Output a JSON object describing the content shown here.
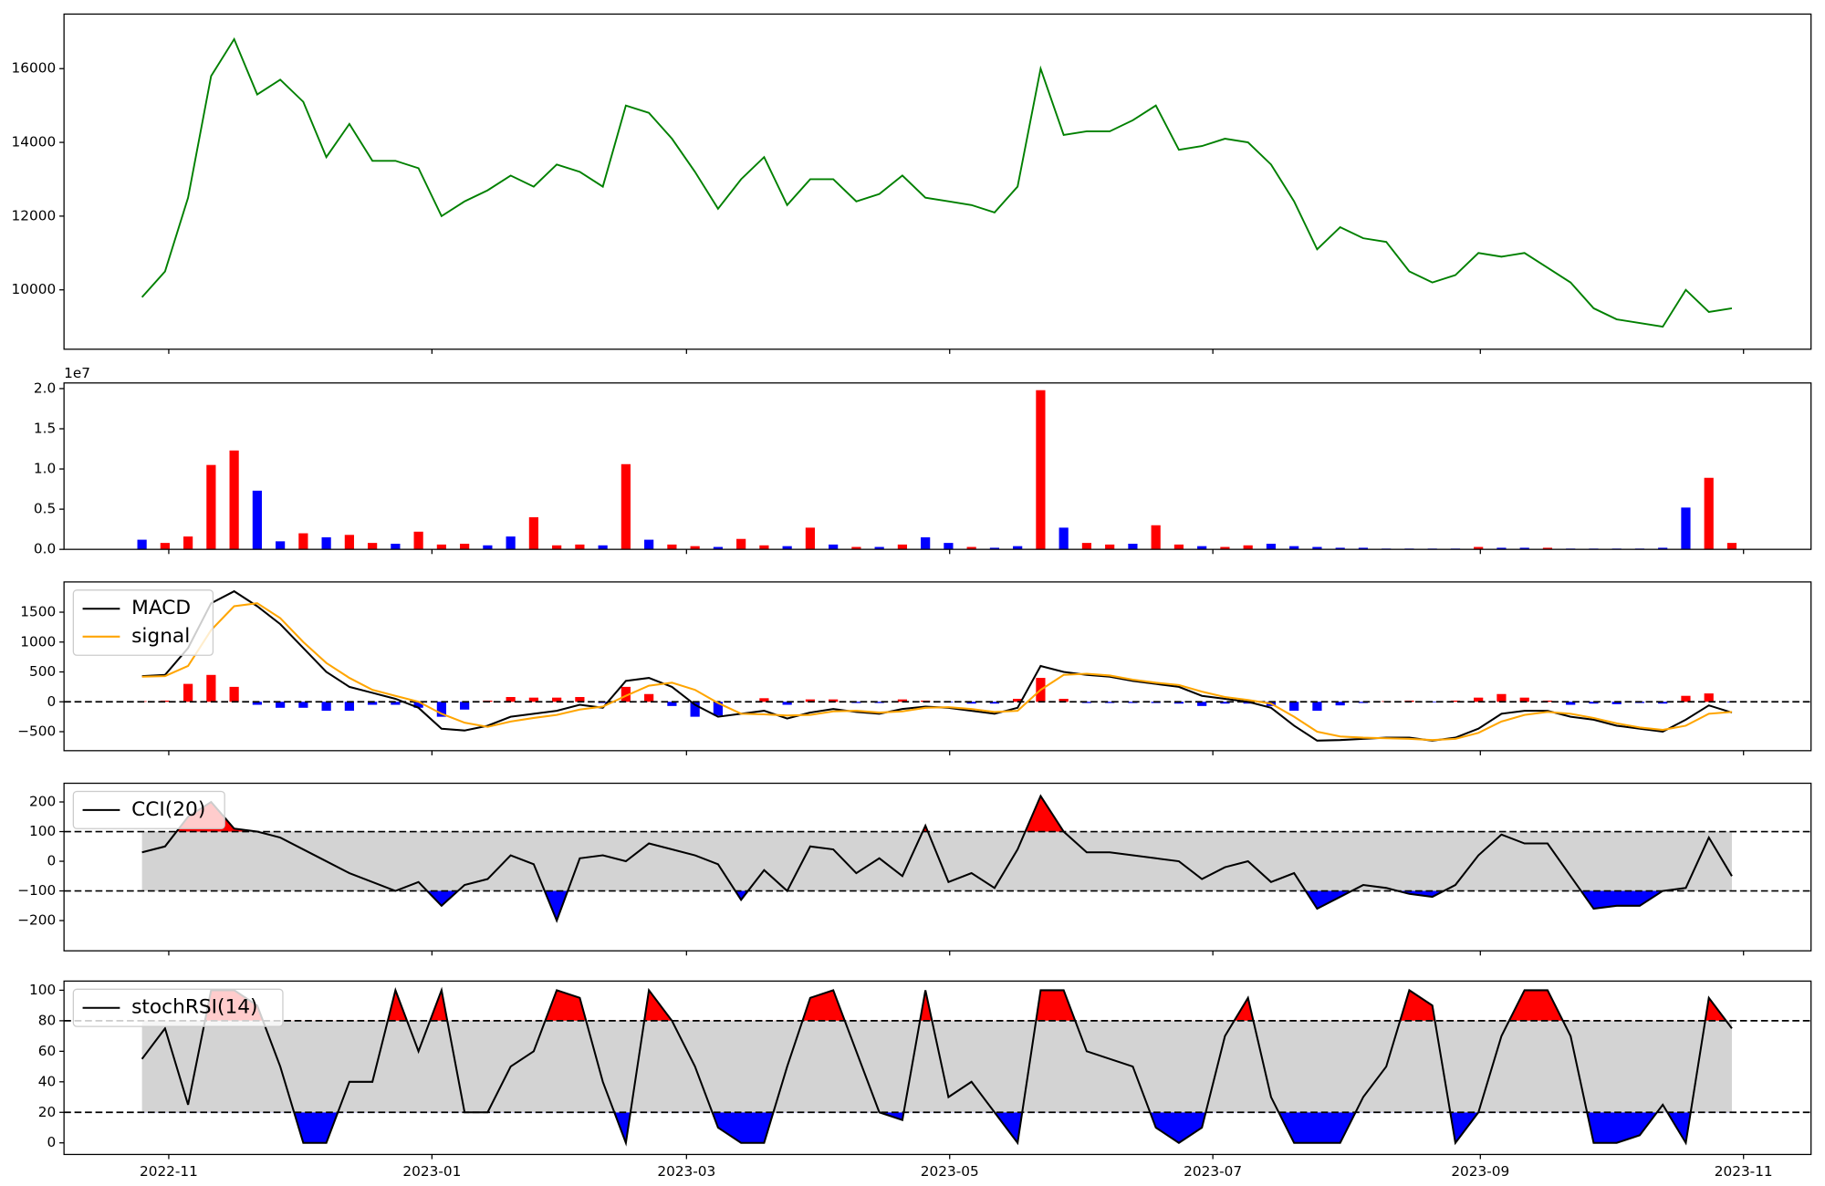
{
  "chart_data": [
    {
      "type": "line",
      "series": [
        {
          "color": "green",
          "values": [
            9800,
            10500,
            12500,
            15800,
            16800,
            15300,
            15700,
            15100,
            13600,
            14500,
            13500,
            13500,
            13300,
            12000,
            12400,
            12700,
            13100,
            12800,
            13400,
            13200,
            12800,
            15000,
            14800,
            14100,
            13200,
            12200,
            13000,
            13600,
            12300,
            13000,
            13000,
            12400,
            12600,
            13100,
            12500,
            12400,
            12300,
            12100,
            12800,
            16000,
            14200,
            14300,
            14300,
            14600,
            15000,
            13800,
            13900,
            14100,
            14000,
            13400,
            12400,
            11100,
            11700,
            11400,
            11300,
            10500,
            10200,
            10400,
            11000,
            10900,
            11000,
            10600,
            10200,
            9500,
            9200,
            9100,
            9000,
            10000,
            9400,
            9500
          ]
        }
      ],
      "ylim": [
        8390,
        17480
      ],
      "yticks": [
        10000,
        12000,
        14000,
        16000
      ]
    },
    {
      "type": "bar",
      "values": [
        1200000,
        800000,
        1600000,
        10500000,
        12300000,
        7300000,
        1000000,
        2000000,
        1500000,
        1800000,
        800000,
        700000,
        2200000,
        600000,
        700000,
        500000,
        1600000,
        4000000,
        500000,
        600000,
        500000,
        10600000,
        1200000,
        600000,
        400000,
        300000,
        1300000,
        500000,
        400000,
        2700000,
        600000,
        300000,
        300000,
        600000,
        1500000,
        800000,
        300000,
        200000,
        400000,
        19800000,
        2700000,
        800000,
        600000,
        700000,
        3000000,
        600000,
        400000,
        300000,
        500000,
        700000,
        400000,
        300000,
        200000,
        200000,
        100000,
        100000,
        100000,
        100000,
        300000,
        200000,
        200000,
        200000,
        100000,
        100000,
        100000,
        100000,
        200000,
        5200000,
        8900000,
        800000
      ],
      "colors": [
        "blue",
        "red",
        "red",
        "red",
        "red",
        "blue",
        "blue",
        "red",
        "blue",
        "red",
        "red",
        "blue",
        "red",
        "red",
        "red",
        "blue",
        "blue",
        "red",
        "red",
        "red",
        "blue",
        "red",
        "blue",
        "red",
        "red",
        "blue",
        "red",
        "red",
        "blue",
        "red",
        "blue",
        "red",
        "blue",
        "red",
        "blue",
        "blue",
        "red",
        "blue",
        "blue",
        "red",
        "blue",
        "red",
        "red",
        "blue",
        "red",
        "red",
        "blue",
        "red",
        "red",
        "blue",
        "blue",
        "blue",
        "blue",
        "blue",
        "blue",
        "blue",
        "blue",
        "blue",
        "red",
        "blue",
        "blue",
        "red",
        "blue",
        "blue",
        "blue",
        "blue",
        "blue",
        "blue",
        "red",
        "red"
      ],
      "ylim": [
        0,
        20700000
      ],
      "yticks": [
        {
          "value": 0,
          "label": "0.0"
        },
        {
          "value": 5000000,
          "label": "0.5"
        },
        {
          "value": 10000000,
          "label": "1.0"
        },
        {
          "value": 15000000,
          "label": "1.5"
        },
        {
          "value": 20000000,
          "label": "2.0"
        }
      ],
      "offset_label": "1e7"
    },
    {
      "type": "macd",
      "series": [
        {
          "name": "MACD",
          "color": "black",
          "values": [
            430,
            450,
            900,
            1650,
            1850,
            1600,
            1300,
            900,
            500,
            250,
            150,
            50,
            -100,
            -450,
            -480,
            -400,
            -250,
            -200,
            -150,
            -50,
            -100,
            350,
            400,
            250,
            -50,
            -250,
            -200,
            -150,
            -280,
            -180,
            -120,
            -170,
            -200,
            -120,
            -80,
            -100,
            -150,
            -200,
            -100,
            600,
            500,
            450,
            420,
            350,
            300,
            250,
            100,
            50,
            0,
            -100,
            -400,
            -650,
            -640,
            -620,
            -600,
            -600,
            -650,
            -600,
            -450,
            -200,
            -150,
            -150,
            -250,
            -300,
            -400,
            -450,
            -500,
            -300,
            -60,
            -180
          ]
        },
        {
          "name": "signal",
          "color": "orange",
          "values": [
            420,
            430,
            600,
            1200,
            1600,
            1650,
            1400,
            1000,
            650,
            400,
            200,
            100,
            0,
            -200,
            -350,
            -420,
            -330,
            -270,
            -220,
            -130,
            -80,
            100,
            270,
            320,
            200,
            -20,
            -200,
            -210,
            -230,
            -220,
            -160,
            -150,
            -180,
            -160,
            -100,
            -90,
            -120,
            -170,
            -150,
            200,
            450,
            470,
            440,
            370,
            320,
            280,
            170,
            80,
            30,
            -30,
            -250,
            -500,
            -580,
            -600,
            -610,
            -620,
            -640,
            -620,
            -520,
            -330,
            -220,
            -170,
            -200,
            -270,
            -360,
            -430,
            -470,
            -400,
            -200,
            -170
          ]
        }
      ],
      "histogram": [
        10,
        20,
        300,
        450,
        250,
        -50,
        -100,
        -100,
        -150,
        -150,
        -50,
        -50,
        -100,
        -250,
        -130,
        20,
        80,
        70,
        70,
        80,
        -20,
        250,
        130,
        -70,
        -250,
        -230,
        0,
        60,
        -50,
        40,
        40,
        -20,
        -20,
        40,
        20,
        -10,
        -30,
        -30,
        50,
        400,
        50,
        -20,
        -20,
        -20,
        -20,
        -30,
        -70,
        -30,
        -30,
        -70,
        -150,
        -150,
        -60,
        -20,
        10,
        20,
        -10,
        20,
        70,
        130,
        70,
        20,
        -50,
        -30,
        -40,
        -20,
        -30,
        100,
        140,
        -10
      ],
      "pos_color": "red",
      "neg_color": "blue",
      "hline": 0,
      "legend": "upper left",
      "ylim": [
        -818,
        2006
      ],
      "yticks": [
        {
          "value": -500,
          "label": "−500"
        },
        0,
        500,
        1000,
        1500
      ]
    },
    {
      "type": "band",
      "series": [
        {
          "name": "CCI(20)",
          "color": "black",
          "values": [
            30,
            50,
            150,
            200,
            110,
            100,
            80,
            40,
            0,
            -40,
            -70,
            -100,
            -70,
            -150,
            -80,
            -60,
            20,
            -10,
            -200,
            10,
            20,
            0,
            60,
            40,
            20,
            -10,
            -130,
            -30,
            -100,
            50,
            40,
            -40,
            10,
            -50,
            120,
            -70,
            -40,
            -90,
            40,
            220,
            100,
            30,
            30,
            20,
            10,
            0,
            -60,
            -20,
            0,
            -70,
            -40,
            -160,
            -120,
            -80,
            -90,
            -110,
            -120,
            -80,
            20,
            90,
            60,
            60,
            -50,
            -160,
            -150,
            -150,
            -100,
            -90,
            80,
            -50
          ]
        }
      ],
      "thresholds": [
        -100,
        100
      ],
      "upper_color": "red",
      "lower_color": "blue",
      "band_color": "lightgray",
      "legend": "upper left",
      "ylim": [
        -302,
        263
      ],
      "yticks": [
        {
          "value": -200,
          "label": "−200"
        },
        {
          "value": -100,
          "label": "−100"
        },
        0,
        100,
        200
      ]
    },
    {
      "type": "band",
      "series": [
        {
          "name": "stochRSI(14)",
          "color": "black",
          "values": [
            55,
            75,
            25,
            100,
            100,
            90,
            50,
            0,
            0,
            40,
            40,
            100,
            60,
            100,
            20,
            20,
            50,
            60,
            100,
            95,
            40,
            0,
            100,
            80,
            50,
            10,
            0,
            0,
            50,
            95,
            100,
            60,
            20,
            15,
            100,
            30,
            40,
            20,
            0,
            100,
            100,
            60,
            55,
            50,
            10,
            0,
            10,
            70,
            95,
            30,
            0,
            0,
            0,
            30,
            50,
            100,
            90,
            0,
            20,
            70,
            100,
            100,
            70,
            0,
            0,
            5,
            25,
            0,
            95,
            75
          ]
        }
      ],
      "thresholds": [
        20,
        80
      ],
      "upper_color": "red",
      "lower_color": "blue",
      "band_color": "lightgray",
      "legend": "upper left",
      "ylim": [
        -7.6,
        106
      ],
      "yticks": [
        0,
        20,
        40,
        60,
        80,
        100
      ],
      "xticks": [
        "2022-11",
        "2023-01",
        "2023-03",
        "2023-05",
        "2023-07",
        "2023-09",
        "2023-11"
      ]
    }
  ]
}
